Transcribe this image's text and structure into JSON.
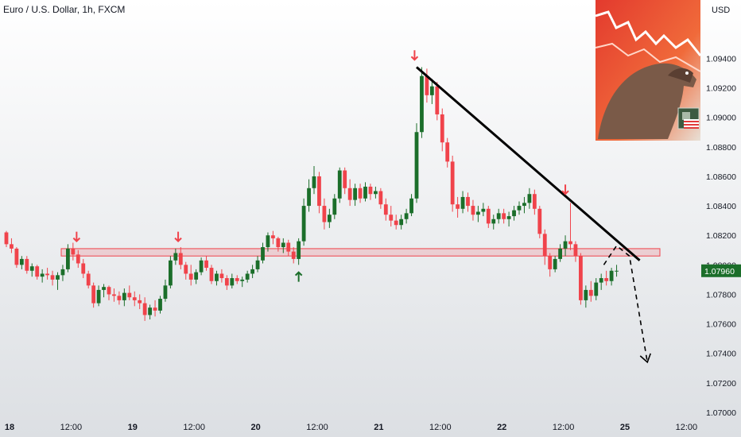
{
  "header": {
    "title": "Euro / U.S. Dollar, 1h, FXCM"
  },
  "axis": {
    "currency": "USD"
  },
  "colors": {
    "up": "#1b6e2a",
    "down": "#f0434b",
    "arrow_down": "#f0434b",
    "arrow_up": "#1b6e2a",
    "zone": "#f0434b",
    "price_tag": "#1b6e2a",
    "trendline": "#000000"
  },
  "chart_data": {
    "type": "candlestick",
    "symbol": "Euro / U.S. Dollar",
    "interval": "1h",
    "source": "FXCM",
    "ylim": [
      1.07,
      1.0972
    ],
    "y_ticks": [
      "1.09400",
      "1.09200",
      "1.09000",
      "1.08800",
      "1.08600",
      "1.08400",
      "1.08200",
      "1.08000",
      "1.07800",
      "1.07600",
      "1.07400",
      "1.07200",
      "1.07000"
    ],
    "x_ticks": [
      {
        "label": "18",
        "bold": true,
        "t": 0
      },
      {
        "label": "12:00",
        "bold": false,
        "t": 12
      },
      {
        "label": "19",
        "bold": true,
        "t": 24
      },
      {
        "label": "12:00",
        "bold": false,
        "t": 36
      },
      {
        "label": "20",
        "bold": true,
        "t": 48
      },
      {
        "label": "12:00",
        "bold": false,
        "t": 60
      },
      {
        "label": "21",
        "bold": true,
        "t": 72
      },
      {
        "label": "12:00",
        "bold": false,
        "t": 84
      },
      {
        "label": "22",
        "bold": true,
        "t": 96
      },
      {
        "label": "12:00",
        "bold": false,
        "t": 108
      },
      {
        "label": "25",
        "bold": true,
        "t": 120
      },
      {
        "label": "12:00",
        "bold": false,
        "t": 132
      }
    ],
    "last_price": "1.07960",
    "zone": {
      "low": 1.0806,
      "high": 1.0811
    },
    "trendline": {
      "from": {
        "t": 80,
        "price": 1.0934
      },
      "to": {
        "t": 123.5,
        "price": 1.0803
      }
    },
    "projection": [
      {
        "t": 116.5,
        "price": 1.08
      },
      {
        "t": 119,
        "price": 1.0813
      },
      {
        "t": 121.5,
        "price": 1.0806
      },
      {
        "t": 125,
        "price": 1.0734
      }
    ],
    "arrows": [
      {
        "t": 13.7,
        "price": 1.0816,
        "dir": "down"
      },
      {
        "t": 33.5,
        "price": 1.0816,
        "dir": "down"
      },
      {
        "t": 57,
        "price": 1.0795,
        "dir": "up"
      },
      {
        "t": 79.6,
        "price": 1.0939,
        "dir": "down"
      },
      {
        "t": 109,
        "price": 1.0848,
        "dir": "down"
      }
    ],
    "candles": [
      [
        1.0822,
        1.0823,
        1.0812,
        1.0814
      ],
      [
        1.0814,
        1.0818,
        1.0808,
        1.0811
      ],
      [
        1.0811,
        1.0812,
        1.0798,
        1.08
      ],
      [
        1.08,
        1.0806,
        1.0797,
        1.0804
      ],
      [
        1.0804,
        1.0806,
        1.0794,
        1.0796
      ],
      [
        1.0796,
        1.0801,
        1.0792,
        1.0799
      ],
      [
        1.0799,
        1.08,
        1.079,
        1.0792
      ],
      [
        1.0792,
        1.0797,
        1.0788,
        1.0794
      ],
      [
        1.0794,
        1.0798,
        1.079,
        1.0793
      ],
      [
        1.0793,
        1.0796,
        1.0786,
        1.079
      ],
      [
        1.079,
        1.0795,
        1.0783,
        1.0793
      ],
      [
        1.0793,
        1.08,
        1.0789,
        1.0797
      ],
      [
        1.0797,
        1.0814,
        1.0795,
        1.0811
      ],
      [
        1.0811,
        1.0815,
        1.0803,
        1.0807
      ],
      [
        1.0807,
        1.081,
        1.0798,
        1.0801
      ],
      [
        1.0801,
        1.0804,
        1.0791,
        1.0794
      ],
      [
        1.0794,
        1.0796,
        1.0784,
        1.0786
      ],
      [
        1.0786,
        1.0788,
        1.0771,
        1.0774
      ],
      [
        1.0774,
        1.0786,
        1.0772,
        1.0783
      ],
      [
        1.0783,
        1.0787,
        1.0778,
        1.0785
      ],
      [
        1.0785,
        1.0786,
        1.0776,
        1.078
      ],
      [
        1.078,
        1.0784,
        1.0775,
        1.0779
      ],
      [
        1.0779,
        1.0782,
        1.0773,
        1.0776
      ],
      [
        1.0776,
        1.0784,
        1.0772,
        1.0781
      ],
      [
        1.0781,
        1.0786,
        1.0776,
        1.0778
      ],
      [
        1.0778,
        1.0782,
        1.0772,
        1.0776
      ],
      [
        1.0776,
        1.078,
        1.077,
        1.0774
      ],
      [
        1.0774,
        1.0778,
        1.0762,
        1.0766
      ],
      [
        1.0766,
        1.0773,
        1.0763,
        1.0771
      ],
      [
        1.0771,
        1.0776,
        1.0765,
        1.0769
      ],
      [
        1.0769,
        1.0779,
        1.0767,
        1.0777
      ],
      [
        1.0777,
        1.079,
        1.0775,
        1.0786
      ],
      [
        1.0786,
        1.0806,
        1.0784,
        1.0803
      ],
      [
        1.0803,
        1.0811,
        1.08,
        1.0808
      ],
      [
        1.0808,
        1.0812,
        1.0797,
        1.08
      ],
      [
        1.08,
        1.0802,
        1.079,
        1.0794
      ],
      [
        1.0794,
        1.08,
        1.0786,
        1.079
      ],
      [
        1.079,
        1.0797,
        1.0787,
        1.0795
      ],
      [
        1.0795,
        1.0805,
        1.0793,
        1.0803
      ],
      [
        1.0803,
        1.0806,
        1.0796,
        1.0798
      ],
      [
        1.0798,
        1.08,
        1.0787,
        1.0789
      ],
      [
        1.0789,
        1.0796,
        1.0786,
        1.0794
      ],
      [
        1.0794,
        1.0797,
        1.0788,
        1.0791
      ],
      [
        1.0791,
        1.0793,
        1.0783,
        1.0786
      ],
      [
        1.0786,
        1.0794,
        1.0784,
        1.0791
      ],
      [
        1.0791,
        1.0793,
        1.0787,
        1.0789
      ],
      [
        1.0789,
        1.0792,
        1.0785,
        1.079
      ],
      [
        1.079,
        1.0796,
        1.0788,
        1.0794
      ],
      [
        1.0794,
        1.08,
        1.0791,
        1.0797
      ],
      [
        1.0797,
        1.0806,
        1.0795,
        1.0803
      ],
      [
        1.0803,
        1.0815,
        1.0801,
        1.0812
      ],
      [
        1.0812,
        1.0822,
        1.0809,
        1.082
      ],
      [
        1.082,
        1.0823,
        1.0814,
        1.0818
      ],
      [
        1.0818,
        1.0819,
        1.0809,
        1.0812
      ],
      [
        1.0812,
        1.0818,
        1.0808,
        1.0815
      ],
      [
        1.0815,
        1.0817,
        1.0806,
        1.0809
      ],
      [
        1.0809,
        1.0812,
        1.0801,
        1.0804
      ],
      [
        1.0804,
        1.0818,
        1.08,
        1.0816
      ],
      [
        1.0816,
        1.0845,
        1.0813,
        1.084
      ],
      [
        1.084,
        1.0858,
        1.0836,
        1.0852
      ],
      [
        1.0852,
        1.0867,
        1.0848,
        1.086
      ],
      [
        1.086,
        1.0863,
        1.0835,
        1.084
      ],
      [
        1.084,
        1.0845,
        1.0824,
        1.0829
      ],
      [
        1.0829,
        1.0838,
        1.0825,
        1.0834
      ],
      [
        1.0834,
        1.0848,
        1.0831,
        1.0845
      ],
      [
        1.0845,
        1.0866,
        1.0842,
        1.0864
      ],
      [
        1.0864,
        1.0866,
        1.0848,
        1.0852
      ],
      [
        1.0852,
        1.0858,
        1.084,
        1.0844
      ],
      [
        1.0844,
        1.0855,
        1.084,
        1.0852
      ],
      [
        1.0852,
        1.0855,
        1.0842,
        1.0845
      ],
      [
        1.0845,
        1.0856,
        1.0843,
        1.0853
      ],
      [
        1.0853,
        1.0855,
        1.0844,
        1.0848
      ],
      [
        1.0848,
        1.0853,
        1.0845,
        1.085
      ],
      [
        1.085,
        1.0852,
        1.0838,
        1.0841
      ],
      [
        1.0841,
        1.0845,
        1.083,
        1.0834
      ],
      [
        1.0834,
        1.084,
        1.0826,
        1.083
      ],
      [
        1.083,
        1.0834,
        1.0824,
        1.0827
      ],
      [
        1.0827,
        1.0834,
        1.0824,
        1.0831
      ],
      [
        1.0831,
        1.0838,
        1.0828,
        1.0835
      ],
      [
        1.0835,
        1.0848,
        1.0833,
        1.0845
      ],
      [
        1.0845,
        1.0896,
        1.0842,
        1.089
      ],
      [
        1.089,
        1.0934,
        1.0886,
        1.0928
      ],
      [
        1.0928,
        1.0933,
        1.091,
        1.0915
      ],
      [
        1.0915,
        1.0926,
        1.0909,
        1.0921
      ],
      [
        1.0921,
        1.0924,
        1.0898,
        1.0902
      ],
      [
        1.0902,
        1.0906,
        1.0877,
        1.0883
      ],
      [
        1.0883,
        1.0886,
        1.0866,
        1.087
      ],
      [
        1.087,
        1.0874,
        1.0836,
        1.0841
      ],
      [
        1.0841,
        1.0846,
        1.0832,
        1.0838
      ],
      [
        1.0838,
        1.085,
        1.0835,
        1.0846
      ],
      [
        1.0846,
        1.0849,
        1.0836,
        1.084
      ],
      [
        1.084,
        1.0844,
        1.083,
        1.0834
      ],
      [
        1.0834,
        1.084,
        1.0829,
        1.0836
      ],
      [
        1.0836,
        1.0842,
        1.0833,
        1.0838
      ],
      [
        1.0838,
        1.084,
        1.0825,
        1.0828
      ],
      [
        1.0828,
        1.0834,
        1.0824,
        1.0831
      ],
      [
        1.0831,
        1.0838,
        1.0828,
        1.0835
      ],
      [
        1.0835,
        1.0838,
        1.0828,
        1.0831
      ],
      [
        1.0831,
        1.0836,
        1.0826,
        1.0833
      ],
      [
        1.0833,
        1.084,
        1.083,
        1.0837
      ],
      [
        1.0837,
        1.0843,
        1.0834,
        1.084
      ],
      [
        1.084,
        1.0846,
        1.0835,
        1.0842
      ],
      [
        1.0842,
        1.0852,
        1.0838,
        1.0848
      ],
      [
        1.0848,
        1.0851,
        1.0834,
        1.0838
      ],
      [
        1.0838,
        1.084,
        1.0818,
        1.0821
      ],
      [
        1.0821,
        1.0824,
        1.08,
        1.0806
      ],
      [
        1.0806,
        1.0808,
        1.0792,
        1.0797
      ],
      [
        1.0797,
        1.0806,
        1.0795,
        1.0804
      ],
      [
        1.0804,
        1.0814,
        1.0802,
        1.0811
      ],
      [
        1.0811,
        1.082,
        1.0806,
        1.0816
      ],
      [
        1.0816,
        1.0842,
        1.081,
        1.0814
      ],
      [
        1.0814,
        1.0816,
        1.0802,
        1.0806
      ],
      [
        1.0806,
        1.0808,
        1.0773,
        1.0776
      ],
      [
        1.0776,
        1.0786,
        1.0771,
        1.0783
      ],
      [
        1.0783,
        1.0789,
        1.0775,
        1.0779
      ],
      [
        1.0779,
        1.0791,
        1.0776,
        1.0788
      ],
      [
        1.0788,
        1.0794,
        1.0783,
        1.0791
      ],
      [
        1.0791,
        1.0796,
        1.0786,
        1.0789
      ],
      [
        1.0789,
        1.0798,
        1.0786,
        1.0796
      ],
      [
        1.0796,
        1.08,
        1.0792,
        1.0796
      ]
    ]
  }
}
